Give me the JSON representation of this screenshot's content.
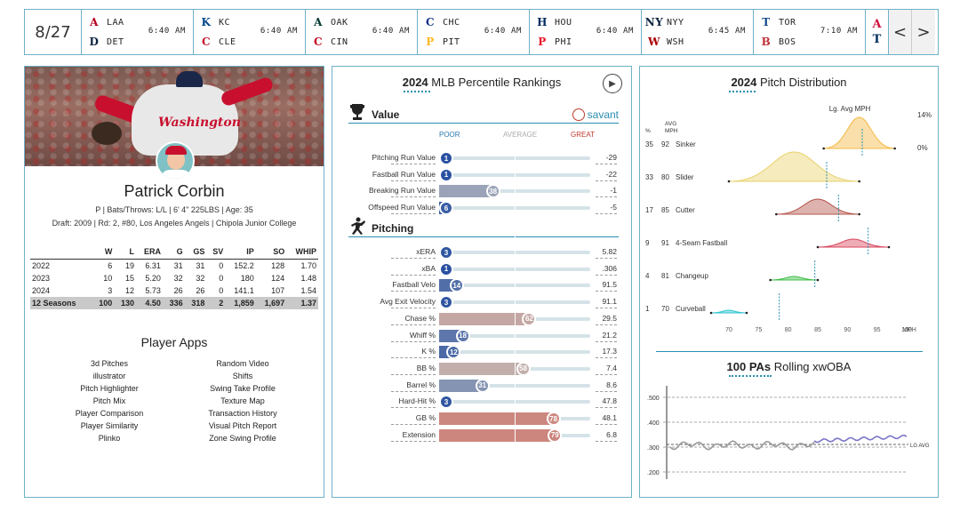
{
  "scoreboard": {
    "date": "8/27",
    "games": [
      {
        "away": "LAA",
        "home": "DET",
        "time": "6:40 AM",
        "away_color": "#ba0021",
        "home_color": "#0c2340",
        "away_glyph": "A",
        "home_glyph": "D"
      },
      {
        "away": "KC",
        "home": "CLE",
        "time": "6:40 AM",
        "away_color": "#004687",
        "home_color": "#c8102e",
        "away_glyph": "K",
        "home_glyph": "C"
      },
      {
        "away": "OAK",
        "home": "CIN",
        "time": "6:40 AM",
        "away_color": "#003831",
        "home_color": "#c6011f",
        "away_glyph": "A",
        "home_glyph": "C"
      },
      {
        "away": "CHC",
        "home": "PIT",
        "time": "6:40 AM",
        "away_color": "#0e3386",
        "home_color": "#fdb827",
        "away_glyph": "C",
        "home_glyph": "P"
      },
      {
        "away": "HOU",
        "home": "PHI",
        "time": "6:40 AM",
        "away_color": "#002d62",
        "home_color": "#e81828",
        "away_glyph": "H",
        "home_glyph": "P"
      },
      {
        "away": "NYY",
        "home": "WSH",
        "time": "6:45 AM",
        "away_color": "#0c2340",
        "home_color": "#ab0003",
        "away_glyph": "NY",
        "home_glyph": "W"
      },
      {
        "away": "TOR",
        "home": "BOS",
        "time": "7:10 AM",
        "away_color": "#134a8e",
        "home_color": "#bd3039",
        "away_glyph": "T",
        "home_glyph": "B"
      }
    ],
    "last_game": {
      "away_glyph": "A",
      "home_glyph": "T",
      "away_color": "#ce1141",
      "home_color": "#002b5c"
    },
    "prev_label": "<",
    "next_label": ">"
  },
  "player": {
    "name": "Patrick Corbin",
    "meta": "P | Bats/Throws: L/L | 6' 4\" 225LBS | Age: 35",
    "draft": "Draft: 2009 | Rd: 2, #80, Los Angeles Angels | Chipola Junior College",
    "jersey_text": "Washington",
    "stats_headers": [
      "",
      "W",
      "L",
      "ERA",
      "G",
      "GS",
      "SV",
      "IP",
      "SO",
      "WHIP"
    ],
    "stats_rows": [
      [
        "2022",
        "6",
        "19",
        "6.31",
        "31",
        "31",
        "0",
        "152.2",
        "128",
        "1.70"
      ],
      [
        "2023",
        "10",
        "15",
        "5.20",
        "32",
        "32",
        "0",
        "180",
        "124",
        "1.48"
      ],
      [
        "2024",
        "3",
        "12",
        "5.73",
        "26",
        "26",
        "0",
        "141.1",
        "107",
        "1.54"
      ]
    ],
    "stats_total": [
      "12 Seasons",
      "100",
      "130",
      "4.50",
      "336",
      "318",
      "2",
      "1,859",
      "1,697",
      "1.37"
    ],
    "apps_title": "Player Apps",
    "apps": [
      "3d Pitches",
      "Random Video",
      "illustrator",
      "Shifts",
      "Pitch Highlighter",
      "Swing Take Profile",
      "Pitch Mix",
      "Texture Map",
      "Player Comparison",
      "Transaction History",
      "Player Similarity",
      "Visual Pitch Report",
      "Plinko",
      "Zone Swing Profile"
    ]
  },
  "rankings": {
    "title_year": "2024",
    "title_rest": "MLB Percentile Rankings",
    "savant_label": "savant",
    "scale": {
      "poor": "POOR",
      "average": "AVERAGE",
      "great": "GREAT"
    },
    "sections": [
      {
        "name": "Value",
        "rows": [
          {
            "label": "Pitching Run Value",
            "pct": 1,
            "value": "-29"
          },
          {
            "label": "Fastball Run Value",
            "pct": 1,
            "value": "-22"
          },
          {
            "label": "Breaking Run Value",
            "pct": 38,
            "value": "-1"
          },
          {
            "label": "Offspeed Run Value",
            "pct": 6,
            "value": "-5"
          }
        ]
      },
      {
        "name": "Pitching",
        "rows": [
          {
            "label": "xERA",
            "pct": 3,
            "value": "5.82"
          },
          {
            "label": "xBA",
            "pct": 1,
            "value": ".306"
          },
          {
            "label": "Fastball Velo",
            "pct": 14,
            "value": "91.5"
          },
          {
            "label": "Avg Exit Velocity",
            "pct": 3,
            "value": "91.1"
          },
          {
            "label": "Chase %",
            "pct": 62,
            "value": "29.5"
          },
          {
            "label": "Whiff %",
            "pct": 18,
            "value": "21.2"
          },
          {
            "label": "K %",
            "pct": 12,
            "value": "17.3"
          },
          {
            "label": "BB %",
            "pct": 58,
            "value": "7.4"
          },
          {
            "label": "Barrel %",
            "pct": 31,
            "value": "8.6"
          },
          {
            "label": "Hard-Hit %",
            "pct": 3,
            "value": "47.8"
          },
          {
            "label": "GB %",
            "pct": 78,
            "value": "48.1"
          },
          {
            "label": "Extension",
            "pct": 79,
            "value": "6.8"
          }
        ]
      }
    ]
  },
  "pitch_dist": {
    "title_year": "2024",
    "title_rest": "Pitch Distribution",
    "lg_avg_label": "Lg. Avg MPH",
    "col_headers": {
      "pct": "%",
      "avg": "AVG",
      "mph": "MPH"
    },
    "right_top": "14%",
    "right_zero": "0%",
    "x_ticks": [
      "70",
      "75",
      "80",
      "85",
      "90",
      "95",
      "100"
    ],
    "x_unit": "MPH",
    "pitches": [
      {
        "pct": "35",
        "mph": "92",
        "name": "Sinker",
        "color": "#f4b942",
        "lg": 92.5
      },
      {
        "pct": "33",
        "mph": "80",
        "name": "Slider",
        "color": "#e8d26a",
        "lg": 86.5
      },
      {
        "pct": "17",
        "mph": "85",
        "name": "Cutter",
        "color": "#b5574e",
        "lg": 88.5
      },
      {
        "pct": "9",
        "mph": "91",
        "name": "4-Seam Fastball",
        "color": "#d9475e",
        "lg": 93.5
      },
      {
        "pct": "4",
        "mph": "81",
        "name": "Changeup",
        "color": "#3fbf48",
        "lg": 84.5
      },
      {
        "pct": "1",
        "mph": "70",
        "name": "Curveball",
        "color": "#2ec5d0",
        "lg": 78.5
      }
    ]
  },
  "xwoba": {
    "title_bold": "100 PAs",
    "title_rest": "Rolling xwOBA",
    "y_ticks": [
      ".500",
      ".400",
      ".300",
      ".200"
    ],
    "lg_avg_label": "LG AVG"
  }
}
